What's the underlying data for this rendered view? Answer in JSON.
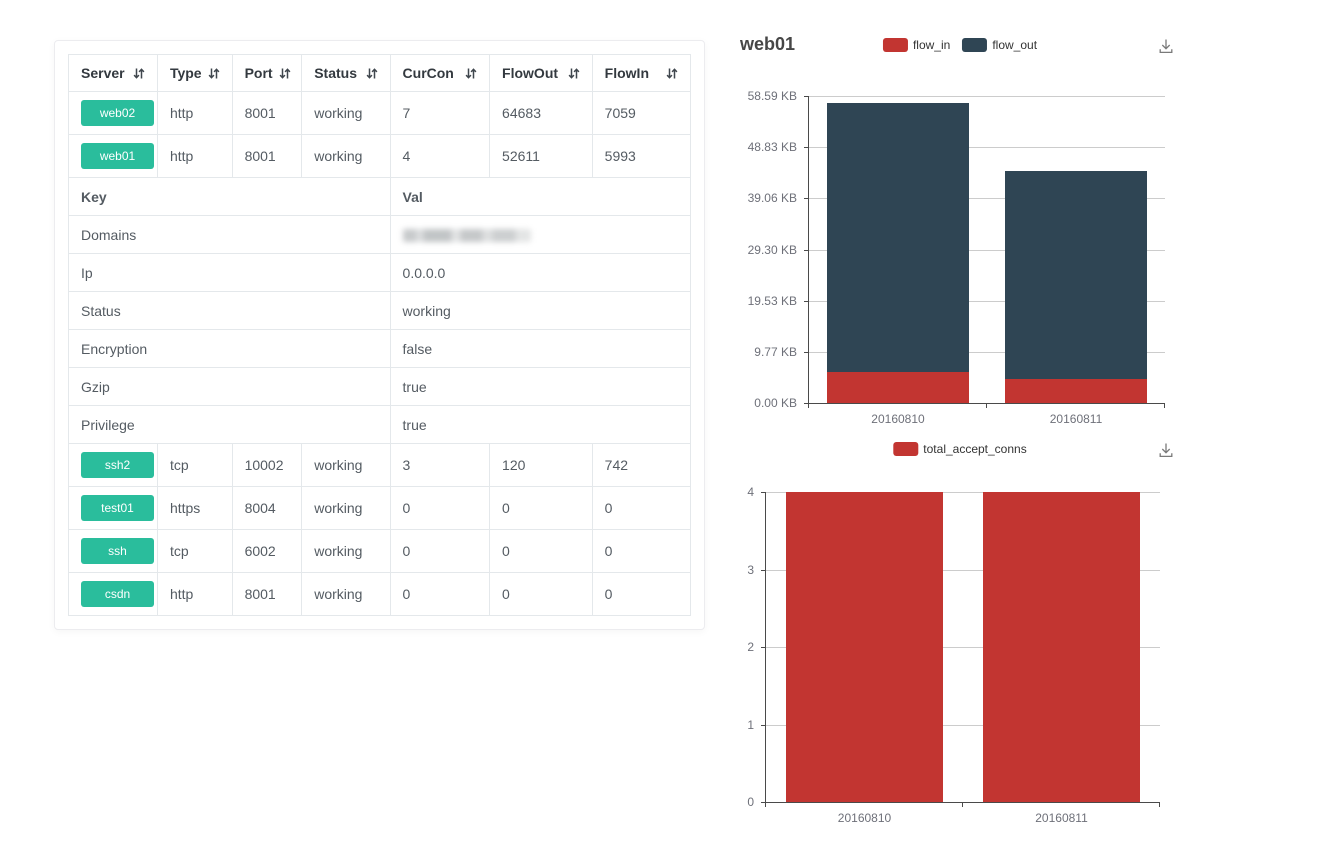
{
  "colors": {
    "accent_green": "#2abd9c",
    "series_red": "#c23531",
    "series_dark": "#2f4554",
    "grid_line": "#cccccc",
    "axis_line": "#4a4a4a"
  },
  "icons": {
    "sort": "sort-arrows-icon (down-up arrows)",
    "download": "save-as-image-icon (arrow into tray)"
  },
  "table": {
    "headers": [
      "Server",
      "Type",
      "Port",
      "Status",
      "CurCon",
      "FlowOut",
      "FlowIn"
    ],
    "rows_top": [
      {
        "server": "web02",
        "type": "http",
        "port": "8001",
        "status": "working",
        "curcon": "7",
        "flowout": "64683",
        "flowin": "7059"
      },
      {
        "server": "web01",
        "type": "http",
        "port": "8001",
        "status": "working",
        "curcon": "4",
        "flowout": "52611",
        "flowin": "5993"
      }
    ],
    "kv_header": {
      "key": "Key",
      "val": "Val"
    },
    "kv_rows": [
      {
        "key": "Domains",
        "val": "",
        "blurred": true
      },
      {
        "key": "Ip",
        "val": "0.0.0.0"
      },
      {
        "key": "Status",
        "val": "working"
      },
      {
        "key": "Encryption",
        "val": "false"
      },
      {
        "key": "Gzip",
        "val": "true"
      },
      {
        "key": "Privilege",
        "val": "true"
      }
    ],
    "rows_bottom": [
      {
        "server": "ssh2",
        "type": "tcp",
        "port": "10002",
        "status": "working",
        "curcon": "3",
        "flowout": "120",
        "flowin": "742"
      },
      {
        "server": "test01",
        "type": "https",
        "port": "8004",
        "status": "working",
        "curcon": "0",
        "flowout": "0",
        "flowin": "0"
      },
      {
        "server": "ssh",
        "type": "tcp",
        "port": "6002",
        "status": "working",
        "curcon": "0",
        "flowout": "0",
        "flowin": "0"
      },
      {
        "server": "csdn",
        "type": "http",
        "port": "8001",
        "status": "working",
        "curcon": "0",
        "flowout": "0",
        "flowin": "0"
      }
    ]
  },
  "chart_data": [
    {
      "type": "bar",
      "stacked": true,
      "title": "web01",
      "categories": [
        "20160810",
        "20160811"
      ],
      "series": [
        {
          "name": "flow_in",
          "color": "#c23531",
          "values": [
            5993,
            4600
          ]
        },
        {
          "name": "flow_out",
          "color": "#2f4554",
          "values": [
            52611,
            40800
          ]
        }
      ],
      "ymax": 60000,
      "ylim": [
        0,
        60000
      ],
      "y_tick_labels": [
        "58.59 KB",
        "48.83 KB",
        "39.06 KB",
        "29.30 KB",
        "19.53 KB",
        "9.77 KB",
        "0.00 KB"
      ],
      "grid": true,
      "legend_position": "top-center"
    },
    {
      "type": "bar",
      "stacked": false,
      "title": "",
      "categories": [
        "20160810",
        "20160811"
      ],
      "series": [
        {
          "name": "total_accept_conns",
          "color": "#c23531",
          "values": [
            4,
            4
          ]
        }
      ],
      "ymax": 4,
      "ylim": [
        0,
        4
      ],
      "y_tick_labels": [
        "4",
        "3",
        "2",
        "1",
        "0"
      ],
      "grid": true,
      "legend_position": "top-center"
    }
  ]
}
